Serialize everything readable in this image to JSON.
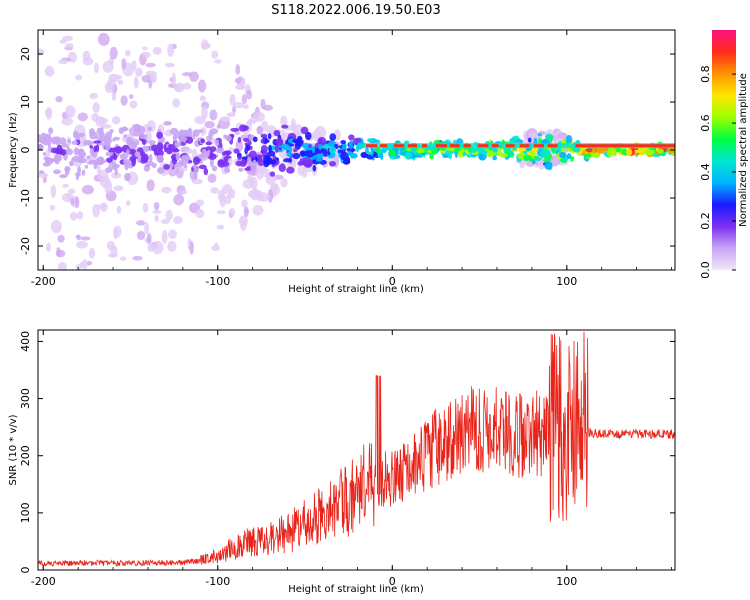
{
  "title": "S118.2022.006.19.50.E03",
  "colorbar": {
    "label": "Normalized spectral amplitude",
    "ticks": [
      "0.0",
      "0.2",
      "0.4",
      "0.6",
      "0.8"
    ],
    "stops": [
      "#f2e6fb",
      "#c8a6f4",
      "#7b2ff2",
      "#1a1aff",
      "#00b5ff",
      "#00e6d0",
      "#00ff40",
      "#9cff00",
      "#ffe600",
      "#ff9400",
      "#ff2a1a",
      "#ff1280"
    ]
  },
  "chart_data": [
    {
      "type": "heatmap",
      "xlabel": "Height of straight line (km)",
      "ylabel": "Frequency (Hz)",
      "xlim": [
        -203,
        162
      ],
      "ylim": [
        -25,
        25
      ],
      "xticks": [
        -200,
        -100,
        0,
        100
      ],
      "xtick_labels": [
        "-200",
        "-100",
        "0",
        "100"
      ],
      "yticks": [
        -20,
        -10,
        0,
        10,
        20
      ],
      "ytick_labels": [
        "-20",
        "-10",
        "0",
        "10",
        "20"
      ],
      "description_points": [
        {
          "x": -200,
          "spread_hz": 25,
          "level": 0.15
        },
        {
          "x": -100,
          "spread_hz": 22,
          "level": 0.2
        },
        {
          "x": -60,
          "spread_hz": 6,
          "level": 0.35
        },
        {
          "x": -30,
          "spread_hz": 3,
          "level": 0.45
        },
        {
          "x": 0,
          "spread_hz": 2,
          "level": 0.6
        },
        {
          "x": 50,
          "spread_hz": 1.5,
          "level": 0.75
        },
        {
          "x": 90,
          "spread_hz": 4,
          "level": 0.7
        },
        {
          "x": 120,
          "spread_hz": 1,
          "level": 0.95
        },
        {
          "x": 160,
          "spread_hz": 1,
          "level": 0.95
        }
      ]
    },
    {
      "type": "line",
      "xlabel": "Height of straight line (km)",
      "ylabel": "SNR (10 * v/v)",
      "xlim": [
        -203,
        162
      ],
      "ylim": [
        0,
        420
      ],
      "xticks": [
        -200,
        -100,
        0,
        100
      ],
      "xtick_labels": [
        "-200",
        "-100",
        "0",
        "100"
      ],
      "yticks": [
        0,
        100,
        200,
        300,
        400
      ],
      "ytick_labels": [
        "0",
        "100",
        "200",
        "300",
        "400"
      ],
      "color": "#e8241a",
      "series": [
        {
          "x": [
            -203,
            -180,
            -150,
            -120,
            -110,
            -100,
            -90,
            -80,
            -70,
            -60,
            -50,
            -40,
            -30,
            -20,
            -10,
            0,
            10,
            20,
            25,
            30,
            40,
            50,
            60,
            70,
            80,
            90,
            95,
            100,
            105,
            110,
            120,
            140,
            162
          ],
          "y": [
            12,
            12,
            12,
            13,
            17,
            25,
            40,
            50,
            55,
            65,
            80,
            100,
            115,
            135,
            155,
            160,
            175,
            200,
            215,
            225,
            245,
            245,
            245,
            235,
            240,
            235,
            230,
            225,
            245,
            240,
            238,
            238,
            238
          ]
        }
      ]
    }
  ]
}
